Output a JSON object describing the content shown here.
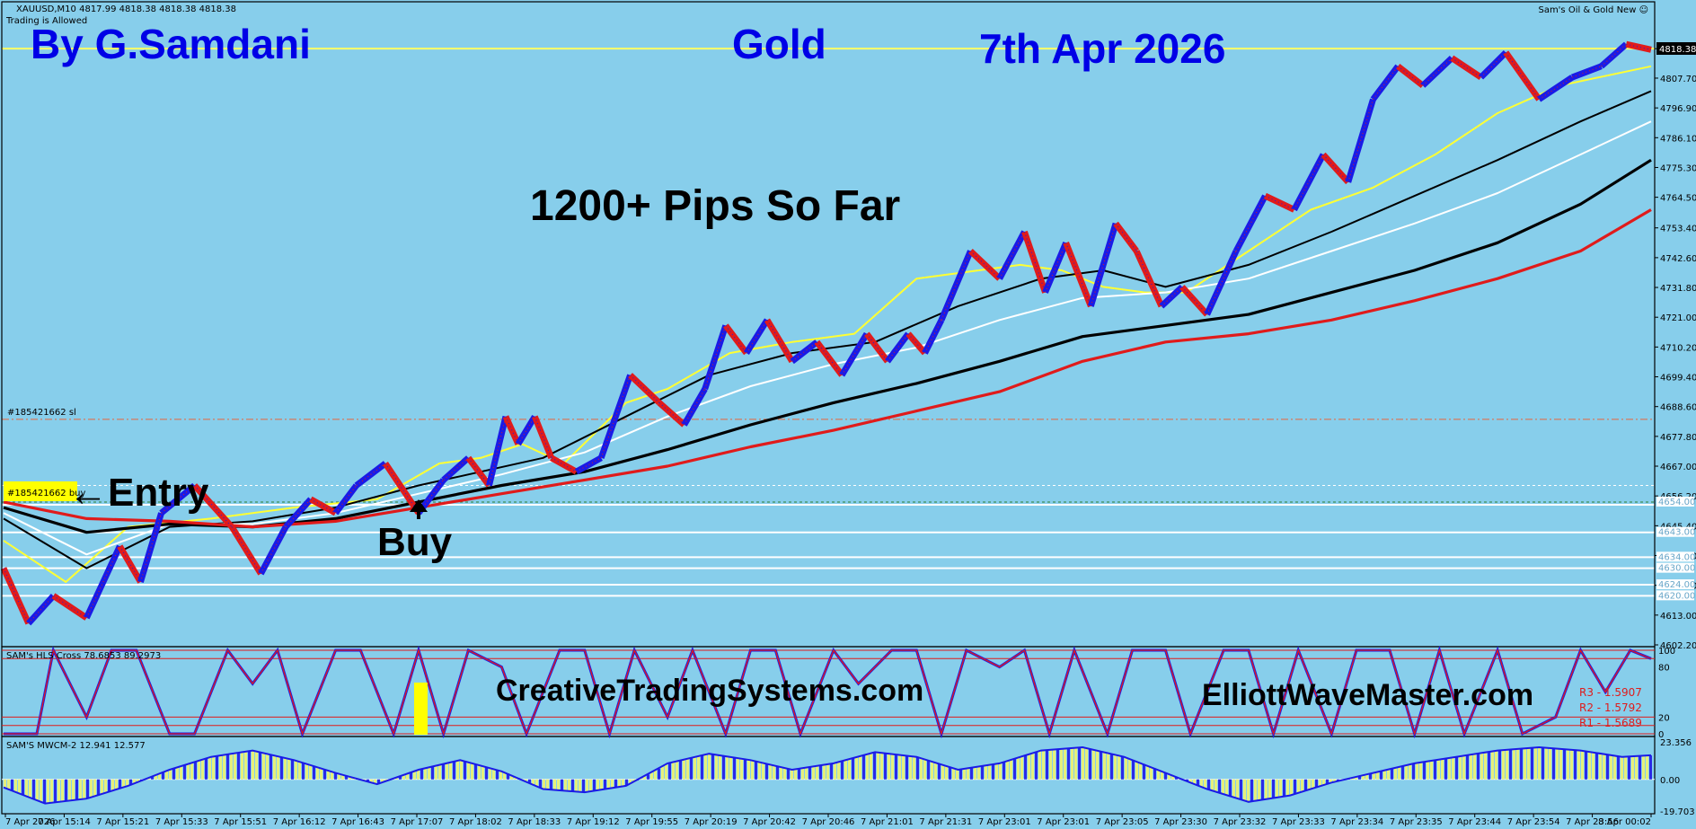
{
  "header": {
    "symbol_line": "XAUUSD,M10  4817.99 4818.38 4818.38 4818.38",
    "trading_status": "Trading is Allowed",
    "indicator_name": "Sam's Oil & Gold New ☺"
  },
  "annotations": {
    "author": "By G.Samdani",
    "instrument": "Gold",
    "date": "7th Apr 2026",
    "pips": "1200+ Pips So Far",
    "entry": "←Entry",
    "buy": "Buy",
    "site1": "CreativeTradingSystems.com",
    "site2": "ElliottWaveMaster.com",
    "order_sl": "#185421662 sl",
    "order_buy": "#185421662 buy",
    "current_price_label": "4818.38"
  },
  "colors": {
    "background": "#87CEEB",
    "up_candle": "#1A1AE6",
    "down_candle": "#E01B1B",
    "ma_yellow": "#FFFF33",
    "ma_white": "#FFFFFF",
    "ma_black": "#000000",
    "ma_red": "#E01B1B",
    "highlight": "#FFFF00"
  },
  "chart_data": [
    {
      "type": "line",
      "panel": "price",
      "y_ticks": [
        "4818.38",
        "4807.70",
        "4796.90",
        "4786.10",
        "4775.30",
        "4764.50",
        "4753.40",
        "4742.60",
        "4731.80",
        "4721.00",
        "4710.20",
        "4699.40",
        "4688.60",
        "4677.80",
        "4667.00",
        "4656.20",
        "4645.40",
        "4634.60",
        "4623.80",
        "4613.00",
        "4602.20"
      ],
      "ylim": [
        4602.2,
        4823
      ],
      "x_ticks": [
        "7 Apr 2026",
        "7 Apr 15:14",
        "7 Apr 15:21",
        "7 Apr 15:33",
        "7 Apr 15:51",
        "7 Apr 16:12",
        "7 Apr 16:43",
        "7 Apr 17:07",
        "7 Apr 18:02",
        "7 Apr 18:33",
        "7 Apr 19:12",
        "7 Apr 19:55",
        "7 Apr 20:19",
        "7 Apr 20:42",
        "7 Apr 20:46",
        "7 Apr 21:01",
        "7 Apr 21:31",
        "7 Apr 23:01",
        "7 Apr 23:01",
        "7 Apr 23:05",
        "7 Apr 23:30",
        "7 Apr 23:32",
        "7 Apr 23:33",
        "7 Apr 23:34",
        "7 Apr 23:35",
        "7 Apr 23:44",
        "7 Apr 23:54",
        "7 Apr 23:56",
        "8 Apr 00:02"
      ],
      "price_x": [
        0,
        6,
        12,
        20,
        28,
        33,
        38,
        46,
        55,
        62,
        68,
        74,
        80,
        85,
        92,
        100,
        106,
        112,
        117,
        121,
        124,
        128,
        132,
        138,
        144,
        151,
        158,
        164,
        169,
        174,
        179,
        184,
        190,
        196,
        202,
        208,
        213,
        218,
        222,
        226,
        233,
        240,
        246,
        251,
        256,
        262,
        268,
        273,
        279,
        284,
        290,
        297,
        304,
        311,
        318,
        324,
        330,
        336,
        342,
        349,
        356,
        362,
        370,
        378,
        385,
        391,
        397
      ],
      "price_y": [
        4630,
        4610,
        4620,
        4612,
        4638,
        4625,
        4650,
        4660,
        4645,
        4628,
        4645,
        4655,
        4650,
        4660,
        4668,
        4650,
        4662,
        4670,
        4660,
        4685,
        4675,
        4685,
        4670,
        4665,
        4670,
        4700,
        4690,
        4682,
        4695,
        4718,
        4708,
        4720,
        4705,
        4712,
        4700,
        4715,
        4705,
        4715,
        4708,
        4720,
        4745,
        4735,
        4752,
        4730,
        4748,
        4725,
        4755,
        4745,
        4725,
        4732,
        4722,
        4745,
        4765,
        4760,
        4780,
        4770,
        4800,
        4812,
        4805,
        4815,
        4808,
        4817,
        4800,
        4808,
        4812,
        4820,
        4818
      ],
      "series": [
        {
          "name": "",
          "color": "#FFFF33",
          "x": [
            0,
            15,
            30,
            50,
            70,
            90,
            105,
            115,
            125,
            135,
            150,
            160,
            175,
            190,
            205,
            220,
            235,
            245,
            255,
            265,
            275,
            285,
            300,
            315,
            330,
            345,
            360,
            375,
            397
          ],
          "y": [
            4640,
            4625,
            4645,
            4648,
            4652,
            4655,
            4668,
            4670,
            4675,
            4668,
            4690,
            4695,
            4708,
            4712,
            4715,
            4735,
            4738,
            4740,
            4738,
            4732,
            4730,
            4730,
            4745,
            4760,
            4768,
            4780,
            4795,
            4805,
            4812
          ]
        },
        {
          "name": "",
          "color": "#000000",
          "x": [
            0,
            20,
            40,
            60,
            80,
            100,
            115,
            130,
            150,
            170,
            190,
            210,
            230,
            250,
            265,
            280,
            300,
            320,
            340,
            360,
            380,
            397
          ],
          "y": [
            4648,
            4630,
            4645,
            4647,
            4652,
            4660,
            4665,
            4670,
            4685,
            4700,
            4708,
            4712,
            4725,
            4735,
            4738,
            4732,
            4740,
            4752,
            4765,
            4778,
            4792,
            4803
          ]
        },
        {
          "name": "",
          "color": "#FFFFFF",
          "x": [
            0,
            20,
            40,
            60,
            80,
            100,
            120,
            140,
            160,
            180,
            200,
            220,
            240,
            260,
            280,
            300,
            320,
            340,
            360,
            380,
            397
          ],
          "y": [
            4650,
            4635,
            4646,
            4646,
            4650,
            4657,
            4664,
            4672,
            4685,
            4696,
            4704,
            4710,
            4720,
            4728,
            4730,
            4735,
            4745,
            4755,
            4766,
            4780,
            4792
          ]
        },
        {
          "name": "",
          "color": "#000000",
          "x": [
            0,
            20,
            40,
            60,
            80,
            100,
            120,
            140,
            160,
            180,
            200,
            220,
            240,
            260,
            280,
            300,
            320,
            340,
            360,
            380,
            397
          ],
          "y": [
            4652,
            4643,
            4646,
            4645,
            4648,
            4654,
            4660,
            4665,
            4673,
            4682,
            4690,
            4697,
            4705,
            4714,
            4718,
            4722,
            4730,
            4738,
            4748,
            4762,
            4778
          ]
        },
        {
          "name": "",
          "color": "#E01B1B",
          "x": [
            0,
            20,
            40,
            60,
            80,
            100,
            120,
            140,
            160,
            180,
            200,
            220,
            240,
            260,
            280,
            300,
            320,
            340,
            360,
            380,
            397
          ],
          "y": [
            4654,
            4648,
            4647,
            4645,
            4647,
            4652,
            4657,
            4662,
            4667,
            4674,
            4680,
            4687,
            4694,
            4705,
            4712,
            4715,
            4720,
            4727,
            4735,
            4745,
            4760
          ]
        }
      ],
      "hlines": [
        {
          "y": 4818.38,
          "color": "#FFFF66",
          "style": "solid"
        },
        {
          "y": 4684,
          "color": "#E8643C",
          "style": "dashdot"
        },
        {
          "y": 4660,
          "color": "#FFFFFF",
          "style": "dashed"
        },
        {
          "y": 4654,
          "color": "#2E7D32",
          "style": "dashed"
        },
        {
          "y": 4653,
          "color": "#FFFFFF",
          "style": "solid"
        },
        {
          "y": 4643,
          "color": "#FFFFFF",
          "style": "solid"
        },
        {
          "y": 4634,
          "color": "#FFFFFF",
          "style": "solid"
        },
        {
          "y": 4630,
          "color": "#FFFFFF",
          "style": "solid"
        },
        {
          "y": 4624,
          "color": "#FFFFFF",
          "style": "solid"
        },
        {
          "y": 4620,
          "color": "#FFFFFF",
          "style": "solid"
        }
      ],
      "hline_labels": [
        "4654.00",
        "4643.00",
        "4634.00",
        "4630.00",
        "4624.00",
        "4620.00"
      ]
    },
    {
      "type": "line",
      "panel": "oscillator1",
      "title": "SAM's HLS Cross 78.6853 89.2973",
      "ylim": [
        0,
        100
      ],
      "y_ticks": [
        "100",
        "80",
        "20",
        "0"
      ],
      "levels_text": [
        "R3 - 1.5907",
        "R2 - 1.5792",
        "R1 - 1.5689"
      ],
      "x": [
        0,
        8,
        12,
        20,
        26,
        32,
        40,
        46,
        54,
        60,
        66,
        72,
        80,
        86,
        94,
        100,
        106,
        112,
        120,
        126,
        134,
        140,
        146,
        152,
        160,
        166,
        174,
        180,
        186,
        192,
        200,
        206,
        214,
        220,
        226,
        232,
        240,
        246,
        252,
        258,
        266,
        272,
        280,
        286,
        294,
        300,
        306,
        312,
        320,
        326,
        334,
        340,
        346,
        352,
        360,
        366,
        374,
        380,
        386,
        392,
        397
      ],
      "y": [
        0,
        0,
        100,
        20,
        100,
        100,
        0,
        0,
        100,
        60,
        100,
        0,
        100,
        100,
        0,
        100,
        0,
        100,
        80,
        0,
        100,
        100,
        0,
        100,
        20,
        100,
        0,
        100,
        100,
        0,
        100,
        60,
        100,
        100,
        0,
        100,
        80,
        100,
        0,
        100,
        0,
        100,
        100,
        0,
        100,
        100,
        0,
        100,
        0,
        100,
        100,
        0,
        100,
        0,
        100,
        0,
        20,
        100,
        50,
        100,
        90
      ]
    },
    {
      "type": "bar",
      "panel": "oscillator2",
      "title": "SAM'S MWCM-2  12.941 12.577",
      "ylim": [
        -19.703,
        23.356
      ],
      "y_ticks": [
        "23.356",
        "0.00",
        "-19.703"
      ],
      "x": [
        0,
        10,
        20,
        30,
        40,
        50,
        60,
        70,
        80,
        90,
        100,
        110,
        120,
        130,
        140,
        150,
        160,
        170,
        180,
        190,
        200,
        210,
        220,
        230,
        240,
        250,
        260,
        270,
        280,
        290,
        300,
        310,
        320,
        330,
        340,
        350,
        360,
        370,
        380,
        390,
        397
      ],
      "y": [
        -5,
        -15,
        -12,
        -4,
        6,
        14,
        18,
        12,
        4,
        -3,
        6,
        12,
        5,
        -6,
        -8,
        -4,
        10,
        16,
        12,
        6,
        10,
        17,
        14,
        6,
        10,
        18,
        20,
        14,
        4,
        -6,
        -14,
        -10,
        -2,
        4,
        10,
        14,
        18,
        20,
        18,
        14,
        15
      ]
    }
  ]
}
